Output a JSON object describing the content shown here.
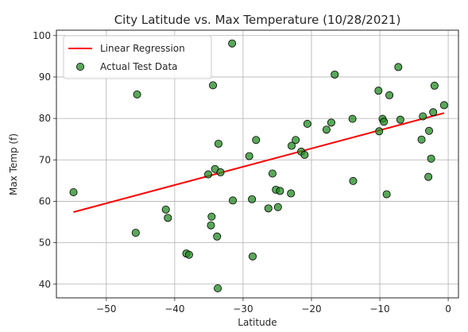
{
  "chart_data": {
    "type": "scatter",
    "title": "City Latitude vs. Max Temperature (10/28/2021)",
    "xlabel": "Latitude",
    "ylabel": "Max Temp (f)",
    "xlim": [
      -57.3,
      1.5
    ],
    "ylim": [
      36.7,
      101.3
    ],
    "grid": true,
    "legend_position": "top-left",
    "xticks": [
      -50,
      -40,
      -30,
      -20,
      -10,
      0
    ],
    "xtick_labels": [
      "−50",
      "−40",
      "−30",
      "−20",
      "−10",
      "0"
    ],
    "yticks": [
      40,
      50,
      60,
      70,
      80,
      90,
      100
    ],
    "ytick_labels": [
      "40",
      "50",
      "60",
      "70",
      "80",
      "90",
      "100"
    ],
    "series": [
      {
        "name": "Linear Regression",
        "kind": "line",
        "color": "#ff0000",
        "x": [
          -54.8,
          -0.6
        ],
        "y": [
          57.4,
          81.3
        ]
      },
      {
        "name": "Actual Test Data",
        "kind": "scatter",
        "color": "#228b22",
        "x": [
          -54.8,
          -45.7,
          -45.5,
          -41.3,
          -41.0,
          -38.3,
          -37.9,
          -35.1,
          -34.7,
          -34.6,
          -34.4,
          -34.1,
          -33.8,
          -33.7,
          -33.6,
          -33.3,
          -31.6,
          -31.5,
          -29.1,
          -28.7,
          -28.6,
          -28.1,
          -26.3,
          -25.7,
          -25.2,
          -24.9,
          -24.6,
          -23.0,
          -22.9,
          -22.3,
          -21.5,
          -21.0,
          -20.6,
          -17.8,
          -17.1,
          -16.6,
          -14.0,
          -13.9,
          -10.2,
          -10.1,
          -9.6,
          -9.4,
          -9.0,
          -8.6,
          -7.3,
          -7.0,
          -3.9,
          -3.7,
          -2.9,
          -2.8,
          -2.5,
          -2.2,
          -2.0,
          -0.6
        ],
        "y": [
          62.2,
          52.4,
          85.8,
          58.0,
          56.0,
          47.4,
          47.1,
          66.5,
          54.2,
          56.3,
          88.0,
          67.8,
          51.5,
          39.0,
          73.9,
          67.0,
          98.1,
          60.2,
          70.9,
          60.5,
          46.7,
          74.8,
          58.3,
          66.7,
          62.8,
          58.6,
          62.5,
          61.9,
          73.4,
          74.8,
          72.0,
          71.2,
          78.7,
          77.3,
          79.0,
          90.6,
          79.9,
          64.9,
          86.7,
          76.9,
          79.9,
          79.2,
          61.7,
          85.6,
          92.4,
          79.7,
          74.9,
          80.5,
          65.9,
          77.0,
          70.3,
          81.5,
          87.9,
          83.2
        ]
      }
    ]
  }
}
